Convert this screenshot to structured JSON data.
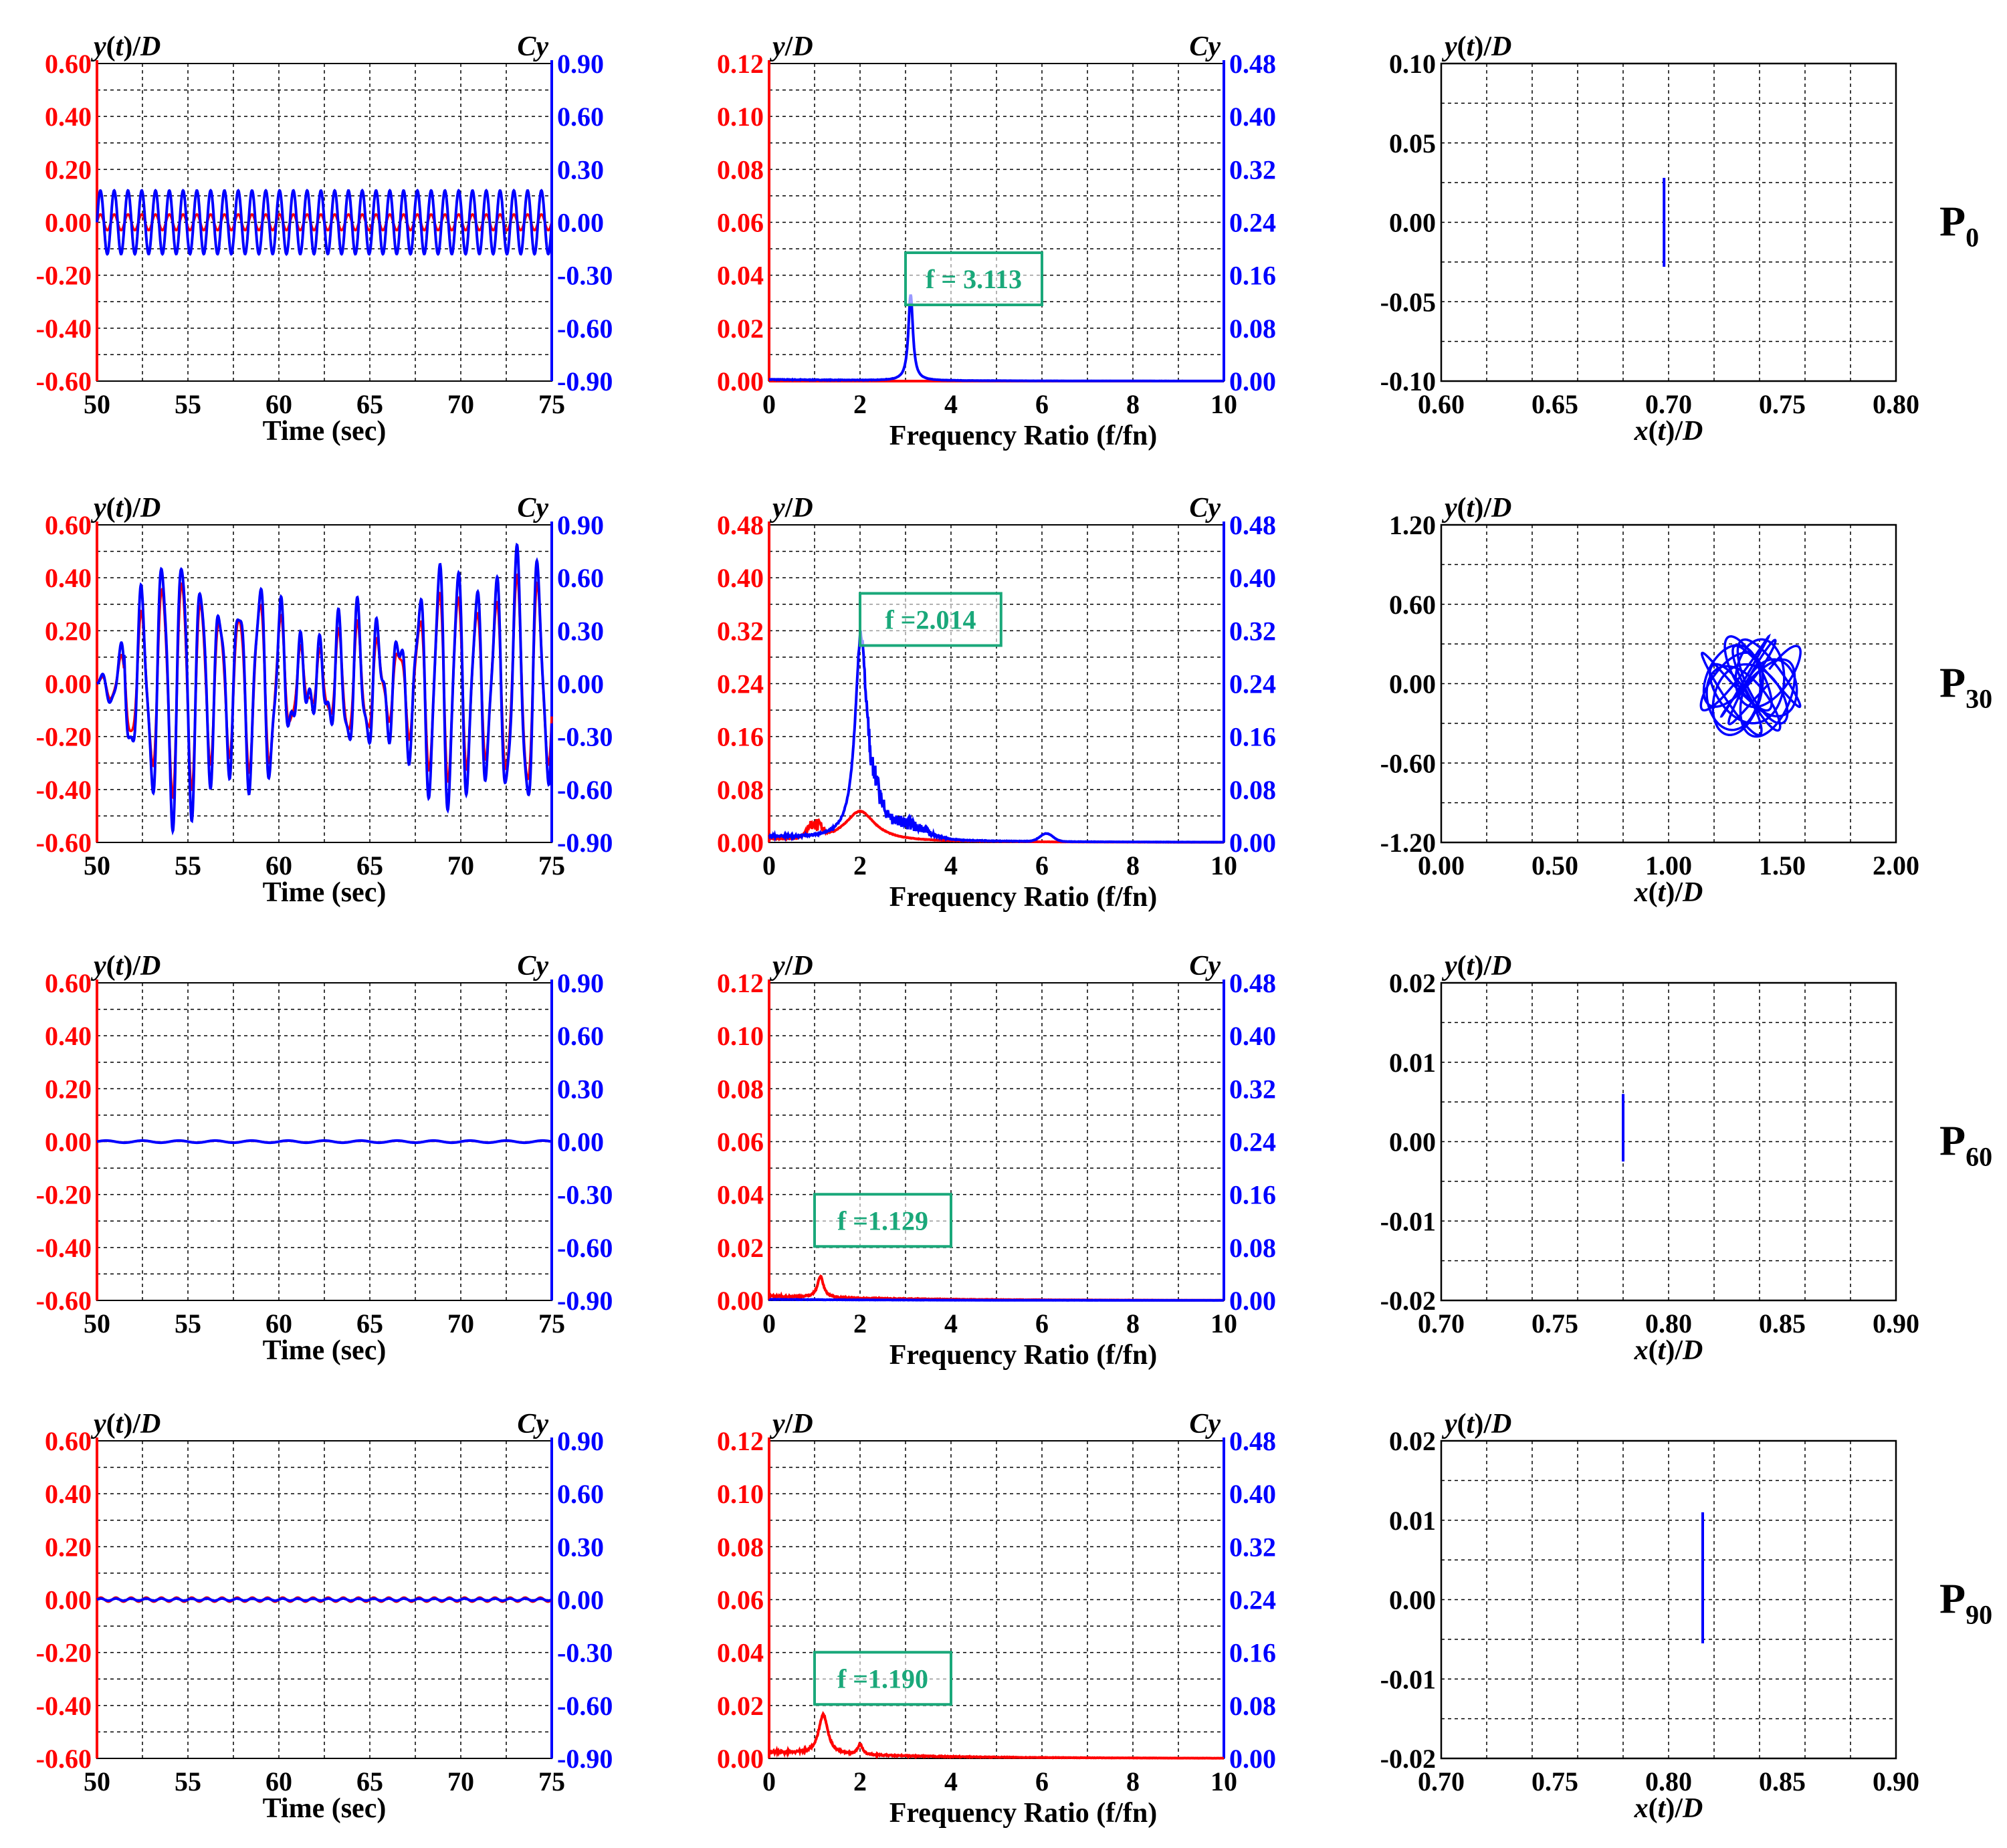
{
  "colors": {
    "left_axis": "#ff0000",
    "right_axis": "#0000ff",
    "disp": "#ff0000",
    "force": "#0000ff",
    "annotation": "#1aa87a",
    "grid": "#000000"
  },
  "chart_data": [
    {
      "row": "P0",
      "type": "line",
      "time_series": {
        "xlabel": "Time (sec)",
        "ylabel_left": "y(t)/D",
        "ylabel_right": "Cy",
        "xlim": [
          50,
          75
        ],
        "xticks": [
          "50",
          "55",
          "60",
          "65",
          "70",
          "75"
        ],
        "ylim_left": [
          -0.6,
          0.6
        ],
        "yticks_left": [
          "0.60",
          "0.40",
          "0.20",
          "0.00",
          "-0.20",
          "-0.40",
          "-0.60"
        ],
        "ylim_right": [
          -0.9,
          0.9
        ],
        "yticks_right": [
          "0.90",
          "0.60",
          "0.30",
          "0.00",
          "-0.30",
          "-0.60",
          "-0.90"
        ],
        "series": [
          {
            "kind": "disp",
            "axis": "left",
            "amp": 0.03,
            "freq": 1.32,
            "noise": 0
          },
          {
            "kind": "force",
            "axis": "right",
            "amp": 0.18,
            "freq": 1.32,
            "noise": 0
          }
        ]
      },
      "spectrum": {
        "xlabel": "Frequency Ratio (f/fn)",
        "ylabel_left": "y/D",
        "ylabel_right": "Cy",
        "xlim": [
          0,
          10
        ],
        "xticks": [
          "0",
          "2",
          "4",
          "6",
          "8",
          "10"
        ],
        "ylim_left": [
          0,
          0.12
        ],
        "yticks_left": [
          "0.12",
          "0.10",
          "0.08",
          "0.06",
          "0.04",
          "0.02",
          "0.00"
        ],
        "ylim_right": [
          0,
          0.48
        ],
        "yticks_right": [
          "0.48",
          "0.40",
          "0.32",
          "0.24",
          "0.16",
          "0.08",
          "0.00"
        ],
        "annotation": "f = 3.113",
        "annotation_x": [
          3.0,
          6.0
        ],
        "annotation_y_frac": 0.24,
        "peaks": [
          {
            "kind": "force",
            "axis": "right",
            "x": 3.113,
            "height": 0.13,
            "width": 0.06,
            "base": 0.003
          },
          {
            "kind": "disp",
            "axis": "left",
            "x": 3.113,
            "height": 0.0,
            "width": 0.06,
            "base": 0.0
          }
        ]
      },
      "orbit": {
        "xlabel": "x(t)/D",
        "ylabel": "y(t)/D",
        "xlim": [
          0.6,
          0.8
        ],
        "xticks": [
          "0.60",
          "0.65",
          "0.70",
          "0.75",
          "0.80"
        ],
        "ylim": [
          -0.1,
          0.1
        ],
        "yticks": [
          "0.10",
          "0.05",
          "0.00",
          "-0.05",
          "-0.10"
        ],
        "segment": {
          "x": 0.698,
          "y0": -0.028,
          "y1": 0.028
        }
      }
    },
    {
      "row": "P30",
      "type": "line",
      "time_series": {
        "xlabel": "Time (sec)",
        "ylabel_left": "y(t)/D",
        "ylabel_right": "Cy",
        "xlim": [
          50,
          75
        ],
        "xticks": [
          "50",
          "55",
          "60",
          "65",
          "70",
          "75"
        ],
        "ylim_left": [
          -0.6,
          0.6
        ],
        "yticks_left": [
          "0.60",
          "0.40",
          "0.20",
          "0.00",
          "-0.20",
          "-0.40",
          "-0.60"
        ],
        "ylim_right": [
          -0.9,
          0.9
        ],
        "yticks_right": [
          "0.90",
          "0.60",
          "0.30",
          "0.00",
          "-0.30",
          "-0.60",
          "-0.90"
        ],
        "series": [
          {
            "kind": "disp",
            "axis": "left",
            "amp": 0.34,
            "freq": 0.92,
            "noise": 0.25
          },
          {
            "kind": "force",
            "axis": "right",
            "amp": 0.62,
            "freq": 0.92,
            "noise": 0.45
          }
        ]
      },
      "spectrum": {
        "xlabel": "Frequency Ratio (f/fn)",
        "ylabel_left": "y/D",
        "ylabel_right": "Cy",
        "xlim": [
          0,
          10
        ],
        "xticks": [
          "0",
          "2",
          "4",
          "6",
          "8",
          "10"
        ],
        "ylim_left": [
          0,
          0.48
        ],
        "yticks_left": [
          "0.48",
          "0.40",
          "0.32",
          "0.24",
          "0.16",
          "0.08",
          "0.00"
        ],
        "ylim_right": [
          0,
          0.48
        ],
        "yticks_right": [
          "0.48",
          "0.40",
          "0.32",
          "0.24",
          "0.16",
          "0.08",
          "0.00"
        ],
        "annotation": "f =2.014",
        "annotation_x": [
          2.0,
          5.1
        ],
        "annotation_y_frac": 0.62,
        "peaks": [
          {
            "kind": "force",
            "axis": "right",
            "x": 2.014,
            "height": 0.3,
            "width": 0.15,
            "base": 0.01
          },
          {
            "kind": "disp",
            "axis": "left",
            "x": 2.0,
            "height": 0.045,
            "width": 0.4,
            "base": 0.005
          }
        ]
      },
      "orbit": {
        "xlabel": "x(t)/D",
        "ylabel": "y(t)/D",
        "xlim": [
          0.0,
          2.0
        ],
        "xticks": [
          "0.00",
          "0.50",
          "1.00",
          "1.50",
          "2.00"
        ],
        "ylim": [
          -1.2,
          1.2
        ],
        "yticks": [
          "1.20",
          "0.60",
          "0.00",
          "-0.60",
          "-1.20"
        ],
        "cloud": {
          "cx": 1.36,
          "cy": -0.02,
          "rx": 0.22,
          "ry": 0.38
        }
      }
    },
    {
      "row": "P60",
      "type": "line",
      "time_series": {
        "xlabel": "Time (sec)",
        "ylabel_left": "y(t)/D",
        "ylabel_right": "Cy",
        "xlim": [
          50,
          75
        ],
        "xticks": [
          "50",
          "55",
          "60",
          "65",
          "70",
          "75"
        ],
        "ylim_left": [
          -0.6,
          0.6
        ],
        "yticks_left": [
          "0.60",
          "0.40",
          "0.20",
          "0.00",
          "-0.20",
          "-0.40",
          "-0.60"
        ],
        "ylim_right": [
          -0.9,
          0.9
        ],
        "yticks_right": [
          "0.90",
          "0.60",
          "0.30",
          "0.00",
          "-0.30",
          "-0.60",
          "-0.90"
        ],
        "series": [
          {
            "kind": "disp",
            "axis": "left",
            "amp": 0.003,
            "freq": 0.5,
            "noise": 0
          },
          {
            "kind": "force",
            "axis": "right",
            "amp": 0.006,
            "freq": 0.5,
            "noise": 0
          }
        ]
      },
      "spectrum": {
        "xlabel": "Frequency Ratio (f/fn)",
        "ylabel_left": "y/D",
        "ylabel_right": "Cy",
        "xlim": [
          0,
          10
        ],
        "xticks": [
          "0",
          "2",
          "4",
          "6",
          "8",
          "10"
        ],
        "ylim_left": [
          0,
          0.12
        ],
        "yticks_left": [
          "0.12",
          "0.10",
          "0.08",
          "0.06",
          "0.04",
          "0.02",
          "0.00"
        ],
        "ylim_right": [
          0,
          0.48
        ],
        "yticks_right": [
          "0.48",
          "0.40",
          "0.32",
          "0.24",
          "0.16",
          "0.08",
          "0.00"
        ],
        "annotation": "f =1.129",
        "annotation_x": [
          1.0,
          4.0
        ],
        "annotation_y_frac": 0.17,
        "peaks": [
          {
            "kind": "disp",
            "axis": "left",
            "x": 1.129,
            "height": 0.008,
            "width": 0.08,
            "base": 0.002
          },
          {
            "kind": "force",
            "axis": "right",
            "x": 1.5,
            "height": 0.0,
            "width": 0.08,
            "base": 0.002
          }
        ]
      },
      "orbit": {
        "xlabel": "x(t)/D",
        "ylabel": "y(t)/D",
        "xlim": [
          0.7,
          0.9
        ],
        "xticks": [
          "0.70",
          "0.75",
          "0.80",
          "0.85",
          "0.90"
        ],
        "ylim": [
          -0.02,
          0.02
        ],
        "yticks": [
          "0.02",
          "0.01",
          "0.00",
          "-0.01",
          "-0.02"
        ],
        "segment": {
          "x": 0.78,
          "y0": -0.0025,
          "y1": 0.006
        }
      }
    },
    {
      "row": "P90",
      "type": "line",
      "time_series": {
        "xlabel": "Time (sec)",
        "ylabel_left": "y(t)/D",
        "ylabel_right": "Cy",
        "xlim": [
          50,
          75
        ],
        "xticks": [
          "50",
          "55",
          "60",
          "65",
          "70",
          "75"
        ],
        "ylim_left": [
          -0.6,
          0.6
        ],
        "yticks_left": [
          "0.60",
          "0.40",
          "0.20",
          "0.00",
          "-0.20",
          "-0.40",
          "-0.60"
        ],
        "ylim_right": [
          -0.9,
          0.9
        ],
        "yticks_right": [
          "0.90",
          "0.60",
          "0.30",
          "0.00",
          "-0.30",
          "-0.60",
          "-0.90"
        ],
        "series": [
          {
            "kind": "disp",
            "axis": "left",
            "amp": 0.008,
            "freq": 1.2,
            "noise": 0
          },
          {
            "kind": "force",
            "axis": "right",
            "amp": 0.006,
            "freq": 1.2,
            "noise": 0
          }
        ]
      },
      "spectrum": {
        "xlabel": "Frequency Ratio (f/fn)",
        "ylabel_left": "y/D",
        "ylabel_right": "Cy",
        "xlim": [
          0,
          10
        ],
        "xticks": [
          "0",
          "2",
          "4",
          "6",
          "8",
          "10"
        ],
        "ylim_left": [
          0,
          0.12
        ],
        "yticks_left": [
          "0.12",
          "0.10",
          "0.08",
          "0.06",
          "0.04",
          "0.02",
          "0.00"
        ],
        "ylim_right": [
          0,
          0.48
        ],
        "yticks_right": [
          "0.48",
          "0.40",
          "0.32",
          "0.24",
          "0.16",
          "0.08",
          "0.00"
        ],
        "annotation": "f =1.190",
        "annotation_x": [
          1.0,
          4.0
        ],
        "annotation_y_frac": 0.17,
        "peaks": [
          {
            "kind": "disp",
            "axis": "left",
            "x": 1.19,
            "height": 0.015,
            "width": 0.12,
            "base": 0.003
          },
          {
            "kind": "disp",
            "axis": "left",
            "x": 2.0,
            "height": 0.004,
            "width": 0.06,
            "base": 0.0
          }
        ]
      },
      "orbit": {
        "xlabel": "x(t)/D",
        "ylabel": "y(t)/D",
        "xlim": [
          0.7,
          0.9
        ],
        "xticks": [
          "0.70",
          "0.75",
          "0.80",
          "0.85",
          "0.90"
        ],
        "ylim": [
          -0.02,
          0.02
        ],
        "yticks": [
          "0.02",
          "0.01",
          "0.00",
          "-0.01",
          "-0.02"
        ],
        "segment": {
          "x": 0.815,
          "y0": -0.0055,
          "y1": 0.011
        }
      }
    }
  ]
}
